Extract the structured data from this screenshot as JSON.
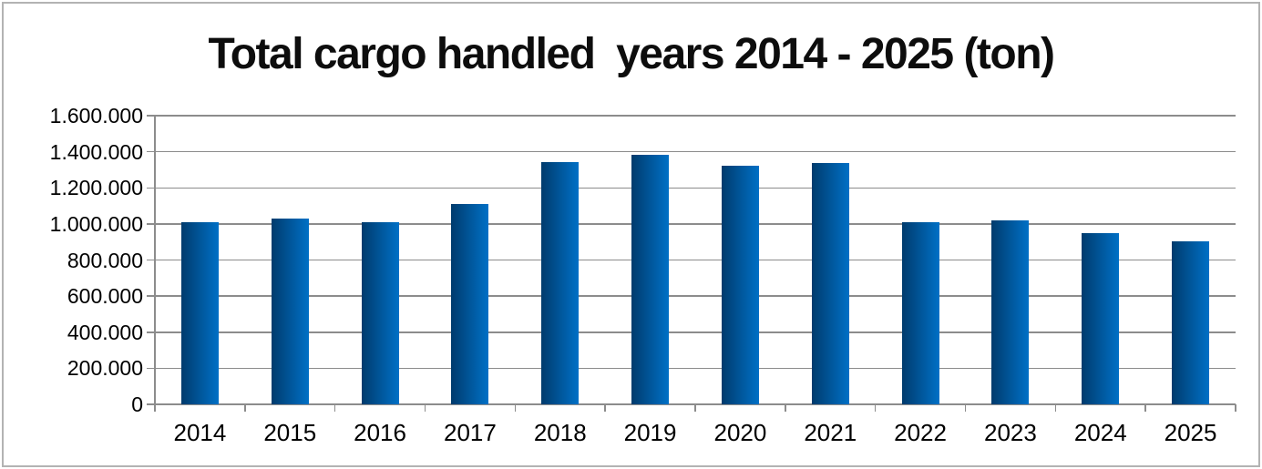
{
  "window": {
    "background": "#FFFFFF",
    "border_color": "#B3B3B3"
  },
  "chart_data": {
    "type": "bar",
    "title": "Total cargo handled  years 2014 - 2025 (ton)",
    "xlabel": "",
    "ylabel": "",
    "categories": [
      "2014",
      "2015",
      "2016",
      "2017",
      "2018",
      "2019",
      "2020",
      "2021",
      "2022",
      "2023",
      "2024",
      "2025"
    ],
    "values": [
      1010000,
      1030000,
      1010000,
      1110000,
      1345000,
      1385000,
      1320000,
      1340000,
      1010000,
      1020000,
      950000,
      905000
    ],
    "ylim": [
      0,
      1600000
    ],
    "ytick_step": 200000,
    "ytick_labels_top_to_bottom": [
      "1.600.000",
      "1.400.000",
      "1.200.000",
      "1.000.000",
      "800.000",
      "600.000",
      "400.000",
      "200.000",
      "0"
    ],
    "grid": true,
    "legend": "none",
    "bar_gradient_left": "#003B6D",
    "bar_gradient_right": "#0070C6",
    "gridline_color": "#8C8C8C",
    "axis_color": "#8C8C8C",
    "text_color": "#000000",
    "title_color": "#0D0D0D"
  }
}
